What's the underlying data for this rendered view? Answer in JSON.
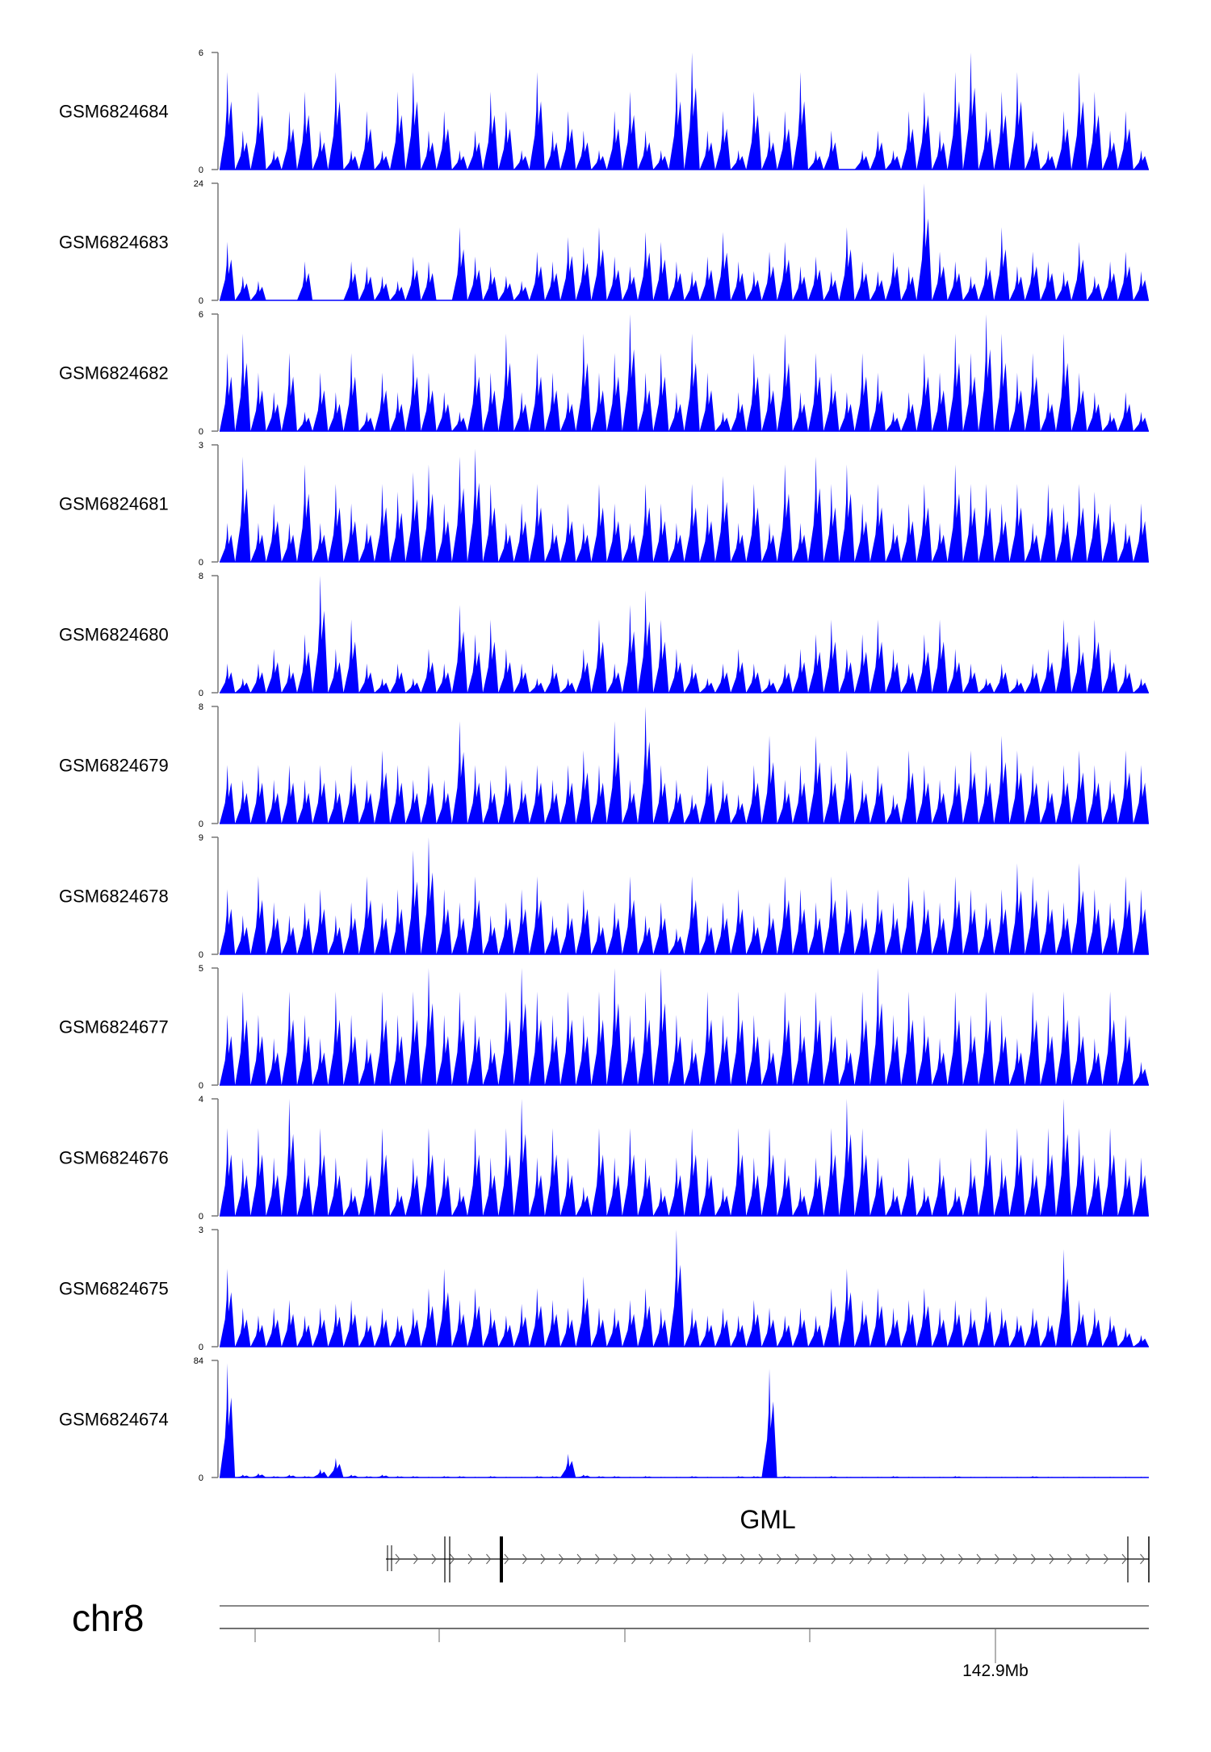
{
  "chart_data": {
    "type": "area",
    "color": "#0000ff",
    "tracks": [
      {
        "name": "GSM6824684",
        "ylim": [
          0,
          6
        ],
        "values": [
          5,
          2,
          4,
          1,
          3,
          4,
          2,
          5,
          1,
          3,
          1,
          4,
          5,
          2,
          3,
          1,
          2,
          4,
          3,
          1,
          5,
          2,
          3,
          2,
          1,
          3,
          4,
          2,
          1,
          5,
          6,
          2,
          3,
          1,
          4,
          2,
          3,
          5,
          1,
          2,
          0,
          1,
          2,
          1,
          3,
          4,
          2,
          5,
          6,
          3,
          4,
          5,
          2,
          1,
          3,
          5,
          4,
          2,
          3,
          1
        ]
      },
      {
        "name": "GSM6824683",
        "ylim": [
          0,
          24
        ],
        "values": [
          12,
          5,
          4,
          0,
          0,
          8,
          0,
          0,
          8,
          7,
          5,
          4,
          9,
          8,
          0,
          15,
          9,
          7,
          5,
          4,
          10,
          8,
          13,
          11,
          15,
          9,
          7,
          14,
          12,
          8,
          6,
          9,
          14,
          8,
          6,
          10,
          12,
          7,
          9,
          6,
          15,
          8,
          6,
          10,
          7,
          24,
          10,
          8,
          5,
          9,
          15,
          7,
          10,
          8,
          6,
          12,
          5,
          8,
          10,
          6
        ]
      },
      {
        "name": "GSM6824682",
        "ylim": [
          0,
          6
        ],
        "values": [
          4,
          5,
          3,
          2,
          4,
          1,
          3,
          2,
          4,
          1,
          3,
          2,
          4,
          3,
          2,
          1,
          4,
          3,
          5,
          2,
          4,
          3,
          2,
          5,
          3,
          4,
          6,
          3,
          4,
          2,
          5,
          3,
          1,
          2,
          4,
          3,
          5,
          2,
          4,
          3,
          2,
          4,
          3,
          1,
          2,
          4,
          3,
          5,
          4,
          6,
          5,
          3,
          4,
          2,
          5,
          3,
          2,
          1,
          2,
          1
        ]
      },
      {
        "name": "GSM6824681",
        "ylim": [
          0,
          3
        ],
        "values": [
          1,
          2.7,
          1,
          1.5,
          1,
          2.5,
          1,
          2,
          1.5,
          1,
          2,
          1.8,
          2.3,
          2.5,
          1.5,
          2.7,
          2.9,
          2,
          1,
          1.5,
          2,
          1,
          1.5,
          1,
          2,
          1.5,
          1,
          2,
          1.5,
          1,
          2,
          1.5,
          2.2,
          1,
          2,
          1,
          2.5,
          1,
          2.7,
          2,
          2.5,
          1.5,
          2,
          1,
          1.5,
          2,
          1,
          2.5,
          2,
          2,
          1.5,
          2,
          1,
          2,
          1.5,
          2,
          1.8,
          1.5,
          1,
          1.5
        ]
      },
      {
        "name": "GSM6824680",
        "ylim": [
          0,
          8
        ],
        "values": [
          2,
          1,
          2,
          3,
          2,
          4,
          8,
          3,
          5,
          2,
          1,
          2,
          1,
          3,
          2,
          6,
          4,
          5,
          3,
          2,
          1,
          2,
          1,
          3,
          5,
          2,
          6,
          7,
          5,
          3,
          2,
          1,
          2,
          3,
          2,
          1,
          2,
          3,
          4,
          5,
          3,
          4,
          5,
          3,
          2,
          4,
          5,
          3,
          2,
          1,
          2,
          1,
          2,
          3,
          5,
          4,
          5,
          3,
          2,
          1
        ]
      },
      {
        "name": "GSM6824679",
        "ylim": [
          0,
          8
        ],
        "values": [
          4,
          3,
          4,
          3,
          4,
          3,
          4,
          3,
          4,
          3,
          5,
          4,
          3,
          4,
          3,
          7,
          4,
          3,
          4,
          3,
          4,
          3,
          4,
          5,
          4,
          7,
          3,
          8,
          4,
          3,
          2,
          4,
          3,
          2,
          4,
          6,
          3,
          4,
          6,
          4,
          5,
          3,
          4,
          2,
          5,
          4,
          3,
          4,
          5,
          4,
          6,
          5,
          4,
          3,
          4,
          5,
          4,
          3,
          5,
          4
        ]
      },
      {
        "name": "GSM6824678",
        "ylim": [
          0,
          9
        ],
        "values": [
          5,
          3,
          6,
          4,
          3,
          4,
          5,
          3,
          4,
          6,
          4,
          5,
          8,
          9,
          5,
          4,
          6,
          3,
          4,
          5,
          6,
          3,
          4,
          5,
          3,
          4,
          6,
          3,
          4,
          2,
          6,
          3,
          4,
          5,
          3,
          4,
          6,
          5,
          4,
          6,
          5,
          4,
          5,
          4,
          6,
          5,
          4,
          6,
          5,
          4,
          5,
          7,
          6,
          5,
          4,
          7,
          5,
          4,
          6,
          5
        ]
      },
      {
        "name": "GSM6824677",
        "ylim": [
          0,
          5
        ],
        "values": [
          3,
          4,
          3,
          2,
          4,
          3,
          2,
          4,
          3,
          2,
          4,
          3,
          4,
          5,
          3,
          4,
          3,
          2,
          4,
          5,
          4,
          3,
          4,
          3,
          4,
          5,
          3,
          4,
          5,
          3,
          2,
          4,
          3,
          4,
          3,
          2,
          4,
          3,
          4,
          3,
          2,
          4,
          5,
          3,
          4,
          3,
          2,
          4,
          3,
          4,
          3,
          2,
          4,
          3,
          4,
          3,
          2,
          4,
          3,
          1
        ]
      },
      {
        "name": "GSM6824676",
        "ylim": [
          0,
          4
        ],
        "values": [
          3,
          2,
          3,
          2,
          4,
          2,
          3,
          2,
          1,
          2,
          3,
          1,
          2,
          3,
          2,
          1,
          3,
          2,
          3,
          4,
          2,
          3,
          2,
          1,
          3,
          2,
          3,
          2,
          1,
          2,
          3,
          2,
          1,
          3,
          2,
          3,
          2,
          1,
          2,
          3,
          4,
          3,
          2,
          1,
          2,
          1,
          2,
          1,
          2,
          3,
          2,
          3,
          2,
          3,
          4,
          3,
          2,
          3,
          2,
          2
        ]
      },
      {
        "name": "GSM6824675",
        "ylim": [
          0,
          3
        ],
        "values": [
          2,
          1,
          0.8,
          1,
          1.2,
          0.8,
          1,
          1.1,
          1.2,
          0.8,
          1,
          0.8,
          1,
          1.5,
          2,
          1.2,
          1.5,
          1,
          0.8,
          1.1,
          1.5,
          1.2,
          1,
          1.8,
          1,
          1,
          1.2,
          1.5,
          1,
          3,
          1,
          0.8,
          1,
          0.8,
          1.2,
          1,
          0.8,
          1,
          0.8,
          1.5,
          2,
          1.2,
          1.5,
          1,
          1.2,
          1.5,
          1,
          1.2,
          1,
          1.3,
          1,
          0.8,
          1,
          0.8,
          2.5,
          1.2,
          1,
          0.8,
          0.5,
          0.3
        ]
      },
      {
        "name": "GSM6824674",
        "ylim": [
          0,
          84
        ],
        "values": [
          82,
          2,
          3,
          1,
          2,
          1,
          6,
          14,
          2,
          1,
          2,
          1,
          1,
          0.5,
          1,
          1,
          0.5,
          1,
          0.5,
          0.5,
          1,
          1,
          17,
          2,
          1,
          1,
          0.5,
          1,
          0.5,
          0.5,
          1,
          0.5,
          0.5,
          1,
          1,
          78,
          1,
          0.5,
          0.5,
          1,
          0.5,
          0.5,
          0.5,
          1,
          0.5,
          0.5,
          0.5,
          1,
          0.5,
          0.5,
          0.5,
          0.5,
          1,
          0.5,
          0.5,
          0.5,
          0.5,
          0.5,
          0.5,
          0.5
        ]
      }
    ],
    "gene": {
      "name": "GML",
      "strand": "+"
    },
    "axis": {
      "chromosome": "chr8",
      "tick_label": "142.9Mb"
    }
  }
}
